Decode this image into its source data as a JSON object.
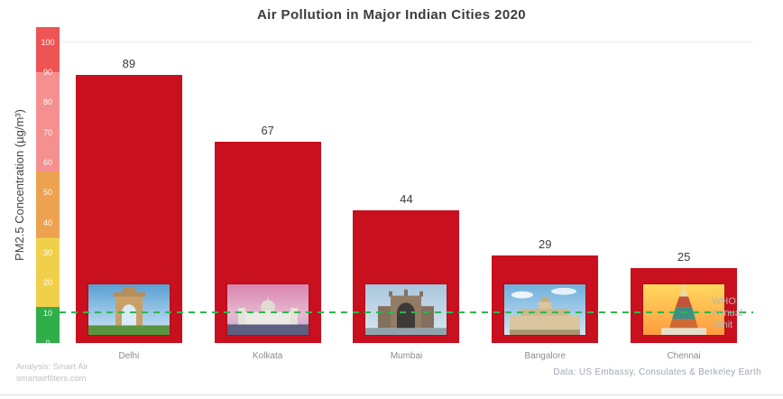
{
  "chart_data": {
    "type": "bar",
    "title": "Air Pollution in Major Indian Cities 2020",
    "ylabel": "PM2.5 Concentration (µg/m³)",
    "categories": [
      "Delhi",
      "Kolkata",
      "Mumbai",
      "Bangalore",
      "Chennai"
    ],
    "values": [
      89,
      67,
      44,
      29,
      25
    ],
    "ylim": [
      0,
      105
    ],
    "yticks": [
      0,
      10,
      20,
      30,
      40,
      50,
      60,
      70,
      80,
      90,
      100
    ],
    "gridlines": [
      100
    ],
    "bar_color": "#c8101e",
    "scale_segments": [
      {
        "to": 12,
        "color": "#2fae4a"
      },
      {
        "to": 35,
        "color": "#f2cf4b"
      },
      {
        "to": 57,
        "color": "#eda24f"
      },
      {
        "to": 90,
        "color": "#f59090"
      },
      {
        "to": 105,
        "color": "#ef5455"
      }
    ],
    "reference_line": {
      "value": 10,
      "label": "WHO Annual Limit",
      "color": "#2eb84d",
      "style": "dashed"
    },
    "photos": [
      "india-gate",
      "victoria-memorial",
      "gateway-of-india",
      "vidhana-soudha",
      "kapaleeshwarar-temple"
    ]
  },
  "footer": {
    "analysis_line1": "Analysis:  Smart Air",
    "analysis_line2": "smartairfilters.com",
    "data_source": "Data:  US Embassy,  Consulates  & Berkeley Earth"
  }
}
